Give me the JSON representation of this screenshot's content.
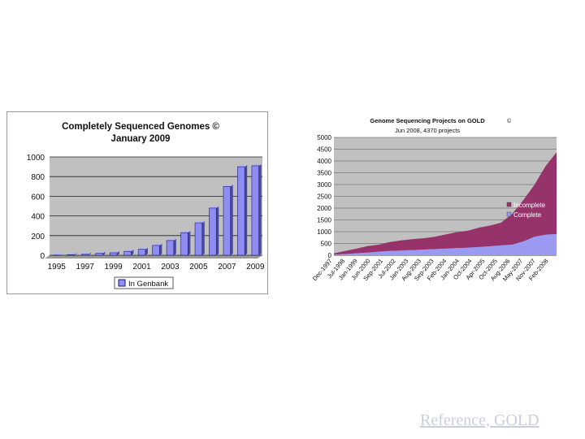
{
  "left_chart_title_line1": "Completely Sequenced Genomes ©",
  "left_chart_title_line2": "January 2009",
  "right_chart_title_line1": "Genome Sequencing Projects on GOLD",
  "right_chart_title_line1_mark": "©",
  "right_chart_title_line2": "Jun 2008, 4370 projects",
  "reference": "Reference, GOLD",
  "colors": {
    "bar": "#8e8ef2",
    "bar_edge": "#1a1a6e",
    "plot_bg": "#c0c0c0",
    "incomplete": "#96336a",
    "complete": "#9a9af2"
  },
  "chart_data": [
    {
      "type": "bar",
      "categories": [
        "1995",
        "1996",
        "1997",
        "1998",
        "1999",
        "2000",
        "2001",
        "2002",
        "2003",
        "2004",
        "2005",
        "2006",
        "2007",
        "2008",
        "2009"
      ],
      "tick_labels": [
        "1995",
        "1997",
        "1999",
        "2001",
        "2003",
        "2005",
        "2007",
        "2009"
      ],
      "series": [
        {
          "name": "In Genbank",
          "values": [
            2,
            6,
            10,
            20,
            25,
            40,
            60,
            100,
            150,
            230,
            330,
            480,
            700,
            900,
            910
          ]
        }
      ],
      "ylim": [
        0,
        1000
      ],
      "yticks": [
        "0",
        "200",
        "400",
        "600",
        "800",
        "1000"
      ],
      "legend": "bottom"
    },
    {
      "type": "area",
      "stacked": true,
      "x": [
        "Dec-1997",
        "Jul-1998",
        "Jan-1999",
        "Aug-1999",
        "Feb-2000",
        "Sep-2000",
        "Mar-2001",
        "Oct-2001",
        "Apr-2002",
        "Nov-2002",
        "May-2003",
        "Dec-2003",
        "Jun-2004",
        "Jan-2005",
        "Jul-2005",
        "Feb-2006",
        "Aug-2006",
        "Mar-2007",
        "Sep-2007",
        "Apr-2008",
        "Jun-2008"
      ],
      "tick_labels": [
        "Dec-1997",
        "Jul-1998",
        "Jan-1999",
        "Jun-2000",
        "Sep-2001",
        "Jul-2002",
        "Jan-2003",
        "Aug-2003",
        "Sep-2003",
        "Feb-2004",
        "Jan-2004",
        "Oct-2004",
        "Apr-2005",
        "Oct-2005",
        "Aug-2006",
        "May-2007",
        "Nov-2007",
        "Feb-2008"
      ],
      "series": [
        {
          "name": "Complete",
          "values": [
            20,
            50,
            80,
            110,
            150,
            180,
            200,
            220,
            240,
            260,
            280,
            300,
            320,
            350,
            380,
            420,
            450,
            580,
            780,
            870,
            900
          ]
        },
        {
          "name": "Incomplete",
          "values": [
            60,
            130,
            200,
            280,
            300,
            380,
            430,
            460,
            480,
            520,
            600,
            680,
            720,
            820,
            880,
            960,
            1300,
            1750,
            2200,
            2900,
            3470
          ]
        }
      ],
      "ylim": [
        0,
        5000
      ],
      "yticks": [
        "0",
        "500",
        "1000",
        "1500",
        "2000",
        "2500",
        "3000",
        "3500",
        "4000",
        "4500",
        "5000"
      ],
      "legend": "inside-right"
    }
  ]
}
